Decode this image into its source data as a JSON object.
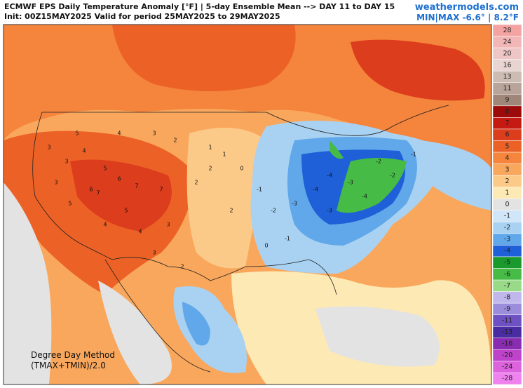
{
  "header": {
    "title": "ECMWF EPS Daily Temperature Anomaly [°F] | 5-day Ensemble Mean --> DAY 11 to DAY 15",
    "subtitle": "Init: 00Z15MAY2025 Valid for period 25MAY2025 to 29MAY2025",
    "site": "weathermodels.com",
    "minmax": "MIN|MAX -6.6° | 8.2°F"
  },
  "footnote": [
    "Degree Day Method",
    "(TMAX+TMIN)/2.0"
  ],
  "legend": {
    "levels": [
      28,
      24,
      20,
      16,
      13,
      11,
      9,
      8,
      7,
      6,
      5,
      4,
      3,
      2,
      1,
      0,
      -1,
      -2,
      -3,
      -4,
      -5,
      -6,
      -7,
      -8,
      -9,
      -11,
      -13,
      -16,
      -20,
      -24,
      -28
    ],
    "colors": [
      "#f4a3a3",
      "#f2b6b6",
      "#eec6c6",
      "#e8d4d0",
      "#cdbcb4",
      "#b8a49a",
      "#a08678",
      "#9c0a0a",
      "#c41a12",
      "#dc3d1c",
      "#ec6226",
      "#f5843c",
      "#f9a75c",
      "#fcca88",
      "#fde9b4",
      "#e3e3e3",
      "#d0e6f8",
      "#a9d2f2",
      "#60a8ea",
      "#1f60d8",
      "#1a9a2c",
      "#46bc46",
      "#98da88",
      "#c0b8ec",
      "#9c8cdc",
      "#6e52c4",
      "#4a2ca2",
      "#8a2cb2",
      "#be42ca",
      "#dc62de",
      "#f082f0"
    ]
  },
  "map_labels": [
    3,
    3,
    4,
    5,
    6,
    7,
    6,
    7,
    7,
    5,
    4,
    3,
    2,
    2,
    1,
    0,
    -1,
    -2,
    -3,
    -4,
    -4,
    -3,
    -2,
    -1,
    0,
    1,
    2,
    3,
    4,
    5,
    3,
    2,
    -3,
    -4,
    -2,
    -1,
    2,
    3,
    4,
    5
  ]
}
